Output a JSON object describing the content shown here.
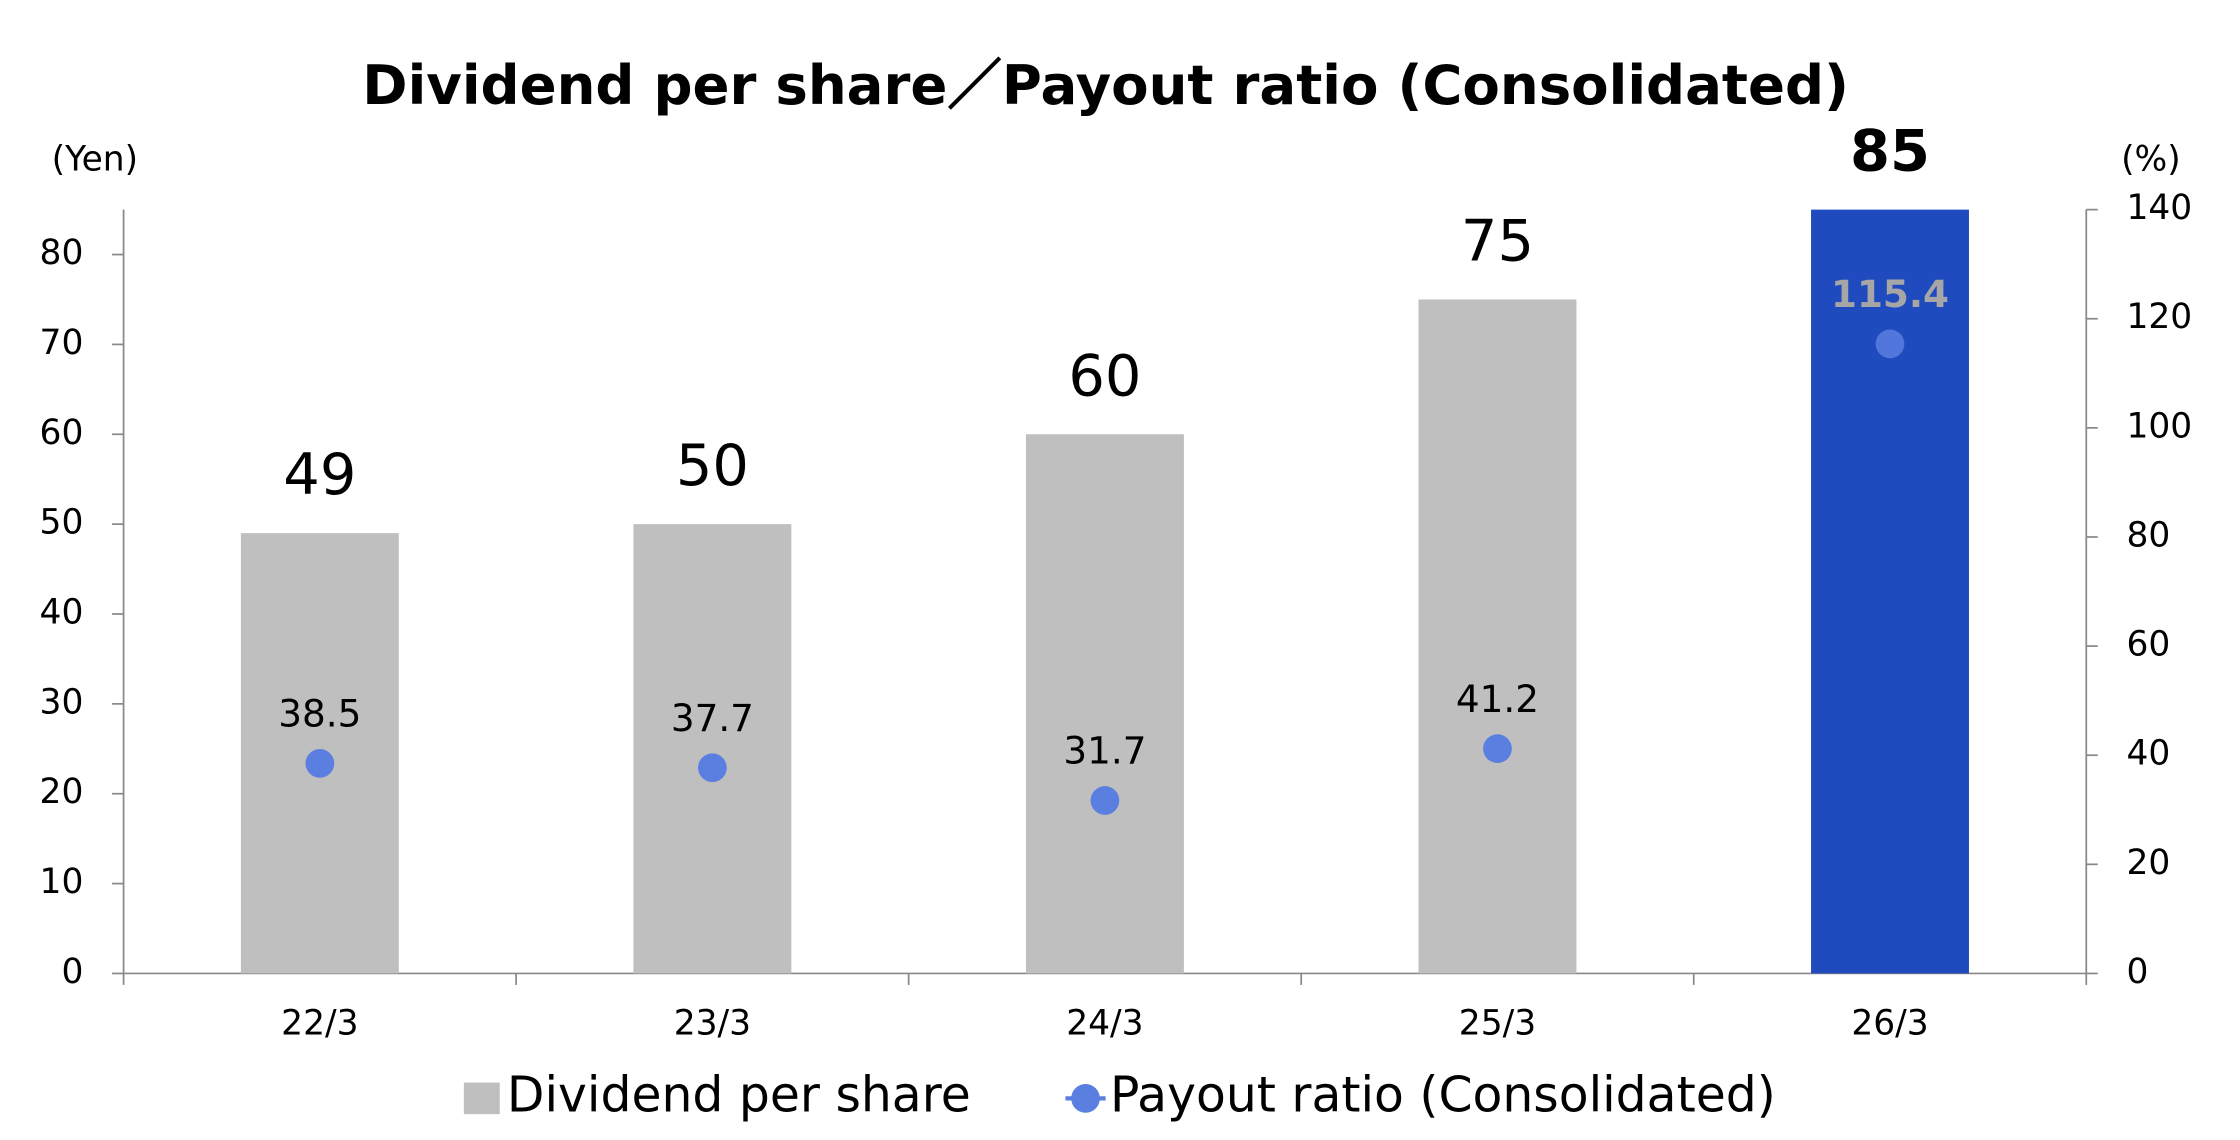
{
  "chart_data": {
    "type": "bar",
    "title": "Dividend per share／Payout ratio (Consolidated)",
    "y_label": "(Yen)",
    "y2_label": "(%)",
    "categories": [
      "22/3",
      "23/3",
      "24/3",
      "25/3",
      "26/3"
    ],
    "series": [
      {
        "name": "Dividend per share",
        "type": "bar",
        "color": "#bfbfbf",
        "colors": [
          "#bfbfbf",
          "#bfbfbf",
          "#bfbfbf",
          "#bfbfbf",
          "#1f4bbf"
        ],
        "values": [
          49,
          50,
          60,
          75,
          85
        ]
      },
      {
        "name": "Payout ratio (Consolidated)",
        "type": "scatter",
        "axis": "y2",
        "color": "#5b7fe0",
        "values": [
          38.5,
          37.7,
          31.7,
          41.2,
          115.4
        ]
      }
    ],
    "ylim": [
      0,
      85
    ],
    "yticks": [
      0,
      10,
      20,
      30,
      40,
      50,
      60,
      70,
      80
    ],
    "y2lim": [
      0,
      140
    ],
    "y2ticks": [
      0,
      20,
      40,
      60,
      80,
      100,
      120,
      140
    ],
    "legend": "bottom"
  }
}
